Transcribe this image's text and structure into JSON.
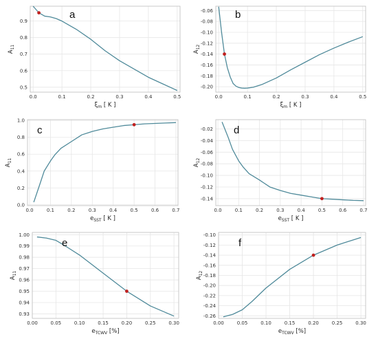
{
  "colors": {
    "line": "#4f8a9a",
    "marker": "#c0201f",
    "grid": "#e6e6e6",
    "frame": "#bdbdbd"
  },
  "chart_data": [
    {
      "type": "line",
      "panel_label": "a",
      "xlabel": "ξm [ K ]",
      "ylabel": "A11",
      "xlim": [
        -0.01,
        0.51
      ],
      "ylim": [
        0.47,
        0.99
      ],
      "xticks": [
        "0.0",
        "0.1",
        "0.2",
        "0.3",
        "0.4",
        "0.5"
      ],
      "xtick_values": [
        0,
        0.1,
        0.2,
        0.3,
        0.4,
        0.5
      ],
      "yticks": [
        "0.5",
        "0.6",
        "0.7",
        "0.8",
        "0.9"
      ],
      "ytick_values": [
        0.5,
        0.6,
        0.7,
        0.8,
        0.9
      ],
      "x": [
        0.0,
        0.02,
        0.04,
        0.06,
        0.08,
        0.1,
        0.15,
        0.2,
        0.25,
        0.3,
        0.35,
        0.4,
        0.45,
        0.5
      ],
      "y": [
        0.99,
        0.95,
        0.93,
        0.925,
        0.915,
        0.9,
        0.85,
        0.79,
        0.72,
        0.66,
        0.61,
        0.56,
        0.52,
        0.48
      ],
      "marker": {
        "x": 0.02,
        "y": 0.95
      },
      "grid": true
    },
    {
      "type": "line",
      "panel_label": "b",
      "xlabel": "ξm [ K ]",
      "ylabel": "A12",
      "xlim": [
        -0.01,
        0.51
      ],
      "ylim": [
        -0.21,
        -0.052
      ],
      "xticks": [
        "0.0",
        "0.1",
        "0.2",
        "0.3",
        "0.4",
        "0.5"
      ],
      "xtick_values": [
        0,
        0.1,
        0.2,
        0.3,
        0.4,
        0.5
      ],
      "yticks": [
        "-0.06",
        "-0.08",
        "-0.10",
        "-0.12",
        "-0.14",
        "-0.16",
        "-0.18",
        "-0.20"
      ],
      "ytick_values": [
        -0.06,
        -0.08,
        -0.1,
        -0.12,
        -0.14,
        -0.16,
        -0.18,
        -0.2
      ],
      "x": [
        0.0,
        0.01,
        0.02,
        0.03,
        0.04,
        0.05,
        0.06,
        0.07,
        0.08,
        0.09,
        0.1,
        0.12,
        0.15,
        0.2,
        0.25,
        0.3,
        0.35,
        0.4,
        0.45,
        0.5
      ],
      "y": [
        -0.053,
        -0.1,
        -0.14,
        -0.165,
        -0.182,
        -0.194,
        -0.199,
        -0.2015,
        -0.2025,
        -0.2028,
        -0.2025,
        -0.201,
        -0.196,
        -0.184,
        -0.169,
        -0.155,
        -0.141,
        -0.129,
        -0.118,
        -0.108
      ],
      "marker": {
        "x": 0.02,
        "y": -0.14
      },
      "grid": true
    },
    {
      "type": "line",
      "panel_label": "c",
      "xlabel": "eSST [ K ]",
      "ylabel": "A11",
      "xlim": [
        -0.01,
        0.71
      ],
      "ylim": [
        -0.01,
        1.01
      ],
      "xticks": [
        "0.0",
        "0.1",
        "0.2",
        "0.3",
        "0.4",
        "0.5",
        "0.6",
        "0.7"
      ],
      "xtick_values": [
        0,
        0.1,
        0.2,
        0.3,
        0.4,
        0.5,
        0.6,
        0.7
      ],
      "yticks": [
        "0.0",
        "0.2",
        "0.4",
        "0.6",
        "0.8",
        "1.0"
      ],
      "ytick_values": [
        0,
        0.2,
        0.4,
        0.6,
        0.8,
        1.0
      ],
      "x": [
        0.02,
        0.05,
        0.07,
        0.1,
        0.12,
        0.15,
        0.2,
        0.25,
        0.3,
        0.35,
        0.4,
        0.45,
        0.5,
        0.55,
        0.6,
        0.65,
        0.7
      ],
      "y": [
        0.03,
        0.25,
        0.4,
        0.52,
        0.59,
        0.67,
        0.75,
        0.83,
        0.87,
        0.9,
        0.92,
        0.94,
        0.95,
        0.96,
        0.965,
        0.97,
        0.975
      ],
      "marker": {
        "x": 0.5,
        "y": 0.95
      },
      "grid": true
    },
    {
      "type": "line",
      "panel_label": "d",
      "xlabel": "eSST [ K ]",
      "ylabel": "A12",
      "xlim": [
        -0.01,
        0.71
      ],
      "ylim": [
        -0.152,
        -0.004
      ],
      "xticks": [
        "0.0",
        "0.1",
        "0.2",
        "0.3",
        "0.4",
        "0.5",
        "0.6",
        "0.7"
      ],
      "xtick_values": [
        0,
        0.1,
        0.2,
        0.3,
        0.4,
        0.5,
        0.6,
        0.7
      ],
      "yticks": [
        "-0.02",
        "-0.04",
        "-0.06",
        "-0.08",
        "-0.10",
        "-0.12",
        "-0.14"
      ],
      "ytick_values": [
        -0.02,
        -0.04,
        -0.06,
        -0.08,
        -0.1,
        -0.12,
        -0.14
      ],
      "x": [
        0.02,
        0.05,
        0.07,
        0.1,
        0.12,
        0.15,
        0.2,
        0.25,
        0.3,
        0.35,
        0.4,
        0.45,
        0.5,
        0.55,
        0.6,
        0.65,
        0.7
      ],
      "y": [
        -0.008,
        -0.035,
        -0.055,
        -0.075,
        -0.085,
        -0.097,
        -0.108,
        -0.12,
        -0.126,
        -0.131,
        -0.134,
        -0.137,
        -0.14,
        -0.141,
        -0.142,
        -0.143,
        -0.1435
      ],
      "marker": {
        "x": 0.5,
        "y": -0.14
      },
      "grid": true
    },
    {
      "type": "line",
      "panel_label": "e",
      "xlabel": "eTCWV [%]",
      "ylabel": "A11",
      "xlim": [
        0.0,
        0.31
      ],
      "ylim": [
        0.926,
        1.002
      ],
      "xticks": [
        "0.00",
        "0.05",
        "0.10",
        "0.15",
        "0.20",
        "0.25",
        "0.30"
      ],
      "xtick_values": [
        0,
        0.05,
        0.1,
        0.15,
        0.2,
        0.25,
        0.3
      ],
      "yticks": [
        "1.00",
        "0.99",
        "0.98",
        "0.97",
        "0.96",
        "0.95",
        "0.94",
        "0.93"
      ],
      "ytick_values": [
        1.0,
        0.99,
        0.98,
        0.97,
        0.96,
        0.95,
        0.94,
        0.93
      ],
      "x": [
        0.01,
        0.03,
        0.05,
        0.07,
        0.1,
        0.15,
        0.2,
        0.25,
        0.3
      ],
      "y": [
        0.998,
        0.997,
        0.995,
        0.99,
        0.982,
        0.966,
        0.95,
        0.937,
        0.928
      ],
      "marker": {
        "x": 0.2,
        "y": 0.95
      },
      "grid": true
    },
    {
      "type": "line",
      "panel_label": "f",
      "xlabel": "eTCWV [%]",
      "ylabel": "A12",
      "xlim": [
        0.0,
        0.31
      ],
      "ylim": [
        -0.265,
        -0.095
      ],
      "xticks": [
        "0.00",
        "0.05",
        "0.10",
        "0.15",
        "0.20",
        "0.25",
        "0.30"
      ],
      "xtick_values": [
        0,
        0.05,
        0.1,
        0.15,
        0.2,
        0.25,
        0.3
      ],
      "yticks": [
        "-0.10",
        "-0.12",
        "-0.14",
        "-0.16",
        "-0.18",
        "-0.20",
        "-0.22",
        "-0.24",
        "-0.26"
      ],
      "ytick_values": [
        -0.1,
        -0.12,
        -0.14,
        -0.16,
        -0.18,
        -0.2,
        -0.22,
        -0.24,
        -0.26
      ],
      "x": [
        0.01,
        0.03,
        0.05,
        0.07,
        0.1,
        0.15,
        0.2,
        0.25,
        0.3
      ],
      "y": [
        -0.262,
        -0.257,
        -0.248,
        -0.232,
        -0.205,
        -0.168,
        -0.14,
        -0.12,
        -0.105
      ],
      "marker": {
        "x": 0.2,
        "y": -0.14
      },
      "grid": true
    }
  ]
}
